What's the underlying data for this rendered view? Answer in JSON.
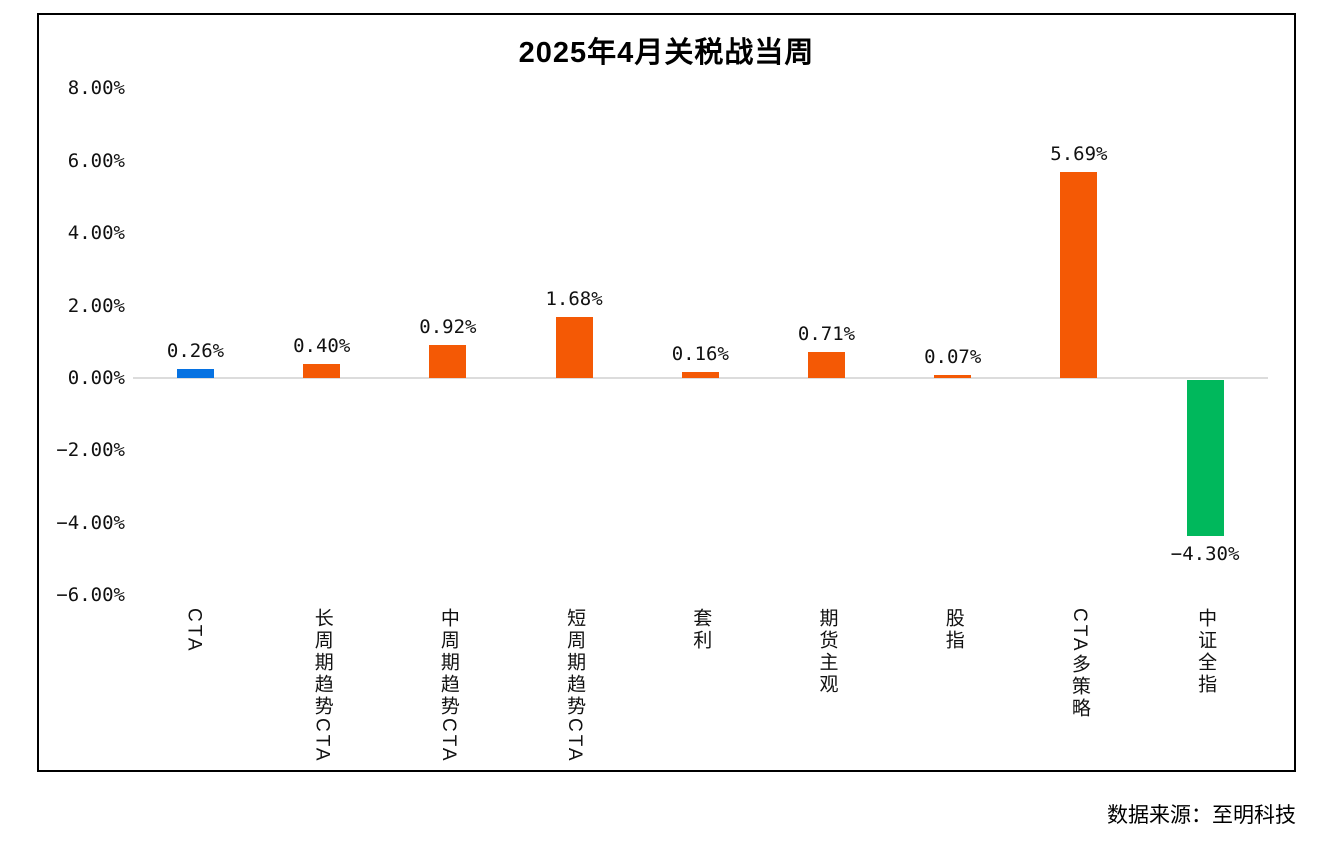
{
  "title": "2025年4月关税战当周",
  "footer": {
    "source_label": "数据来源：至明科技"
  },
  "colors": {
    "bar_blue": "#0672E2",
    "bar_orange": "#F45905",
    "bar_green": "#00B85C",
    "zero_line": "#DCDCDC",
    "frame_border": "#000000",
    "text": "#111111"
  },
  "chart_data": {
    "type": "bar",
    "title": "2025年4月关税战当周",
    "categories": [
      "CTA",
      "长周期趋势CTA",
      "中周期趋势CTA",
      "短周期趋势CTA",
      "套利",
      "期货主观",
      "股指",
      "CTA多策略",
      "中证全指"
    ],
    "values": [
      0.26,
      0.4,
      0.92,
      1.68,
      0.16,
      0.71,
      0.07,
      5.69,
      -4.3
    ],
    "value_labels": [
      "0.26%",
      "0.40%",
      "0.92%",
      "1.68%",
      "0.16%",
      "0.71%",
      "0.07%",
      "5.69%",
      "−4.30%"
    ],
    "bar_colors": [
      "#0672E2",
      "#F45905",
      "#F45905",
      "#F45905",
      "#F45905",
      "#F45905",
      "#F45905",
      "#F45905",
      "#00B85C"
    ],
    "y_ticks": [
      8,
      6,
      4,
      2,
      0,
      -2,
      -4,
      -6
    ],
    "y_tick_labels": [
      "8.00%",
      "6.00%",
      "4.00%",
      "2.00%",
      "0.00%",
      "−2.00%",
      "−4.00%",
      "−6.00%"
    ],
    "ylim": [
      -6,
      8
    ],
    "xlabel": "",
    "ylabel": "",
    "grid": false,
    "legend": null,
    "unit": "percent"
  }
}
